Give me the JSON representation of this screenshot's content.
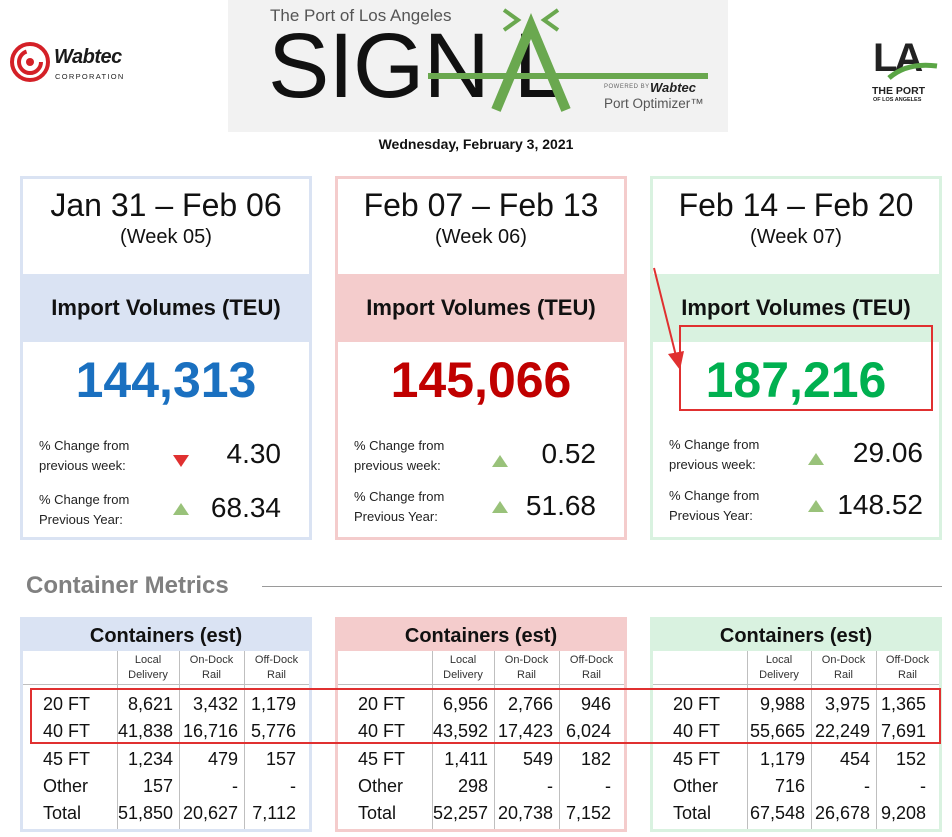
{
  "header": {
    "wabtec_name": "Wabtec",
    "wabtec_corp": "CORPORATION",
    "signal_subtitle": "The Port of Los Angeles",
    "signal_word": "SIGN L",
    "signal_powered": "POWERED BY",
    "signal_brand": "Wabtec",
    "signal_product": "Port Optimizer™",
    "port_la": "LA",
    "port_line1": "THE PORT",
    "port_line2": "OF LOS ANGELES",
    "date": "Wednesday, February 3, 2021"
  },
  "weeks": [
    {
      "range": "Jan 31 – Feb 06",
      "week": "(Week 05)",
      "metric_label": "Import Volumes (TEU)",
      "volume": "144,313",
      "wk_label": "% Change from previous week:",
      "wk_dir": "down",
      "wk_value": "4.30",
      "yr_label": "% Change from Previous Year:",
      "yr_dir": "up",
      "yr_value": "68.34"
    },
    {
      "range": "Feb 07 – Feb 13",
      "week": "(Week 06)",
      "metric_label": "Import Volumes (TEU)",
      "volume": "145,066",
      "wk_label": "% Change from previous week:",
      "wk_dir": "up",
      "wk_value": "0.52",
      "yr_label": "% Change from Previous Year:",
      "yr_dir": "up",
      "yr_value": "51.68"
    },
    {
      "range": "Feb 14 – Feb 20",
      "week": "(Week 07)",
      "metric_label": "Import Volumes (TEU)",
      "volume": "187,216",
      "wk_label": "% Change from previous week:",
      "wk_dir": "up",
      "wk_value": "29.06",
      "yr_label": "% Change from Previous Year:",
      "yr_dir": "up",
      "yr_value": "148.52"
    }
  ],
  "metrics_title": "Container Metrics",
  "tables": [
    {
      "title": "Containers (est)",
      "columns": [
        "Local Delivery",
        "On-Dock Rail",
        "Off-Dock Rail"
      ],
      "rows": [
        {
          "label": "20 FT",
          "values": [
            "8,621",
            "3,432",
            "1,179"
          ]
        },
        {
          "label": "40 FT",
          "values": [
            "41,838",
            "16,716",
            "5,776"
          ]
        },
        {
          "label": "45 FT",
          "values": [
            "1,234",
            "479",
            "157"
          ]
        },
        {
          "label": "Other",
          "values": [
            "157",
            "-",
            "-"
          ]
        },
        {
          "label": "Total",
          "values": [
            "51,850",
            "20,627",
            "7,112"
          ]
        }
      ]
    },
    {
      "title": "Containers (est)",
      "columns": [
        "Local Delivery",
        "On-Dock Rail",
        "Off-Dock Rail"
      ],
      "rows": [
        {
          "label": "20 FT",
          "values": [
            "6,956",
            "2,766",
            "946"
          ]
        },
        {
          "label": "40 FT",
          "values": [
            "43,592",
            "17,423",
            "6,024"
          ]
        },
        {
          "label": "45 FT",
          "values": [
            "1,411",
            "549",
            "182"
          ]
        },
        {
          "label": "Other",
          "values": [
            "298",
            "-",
            "-"
          ]
        },
        {
          "label": "Total",
          "values": [
            "52,257",
            "20,738",
            "7,152"
          ]
        }
      ]
    },
    {
      "title": "Containers (est)",
      "columns": [
        "Local Delivery",
        "On-Dock Rail",
        "Off-Dock Rail"
      ],
      "rows": [
        {
          "label": "20 FT",
          "values": [
            "9,988",
            "3,975",
            "1,365"
          ]
        },
        {
          "label": "40 FT",
          "values": [
            "55,665",
            "22,249",
            "7,691"
          ]
        },
        {
          "label": "45 FT",
          "values": [
            "1,179",
            "454",
            "152"
          ]
        },
        {
          "label": "Other",
          "values": [
            "716",
            "-",
            "-"
          ]
        },
        {
          "label": "Total",
          "values": [
            "67,548",
            "26,678",
            "9,208"
          ]
        }
      ]
    }
  ],
  "colors": {
    "blue": "#1a70c0",
    "red": "#c00000",
    "green": "#00b050",
    "highlight": "#e03030"
  }
}
